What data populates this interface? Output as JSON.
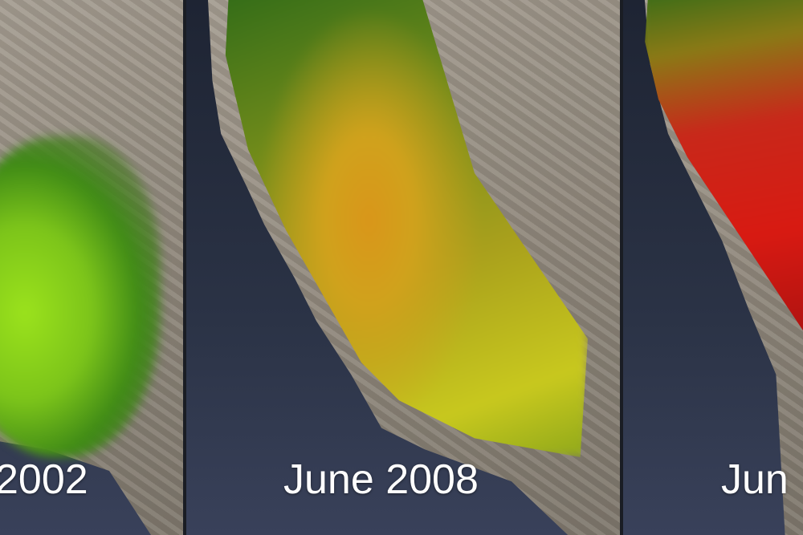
{
  "panels": [
    {
      "label": "2002",
      "overlay_color": "#8fd61a"
    },
    {
      "label": "June 2008",
      "overlay_color": "#d9a21a"
    },
    {
      "label": "Jun",
      "overlay_color": "#d81a12"
    }
  ],
  "colors": {
    "ocean": "#2b3346",
    "land": "#9a9286",
    "divider": "#1a1d24"
  }
}
